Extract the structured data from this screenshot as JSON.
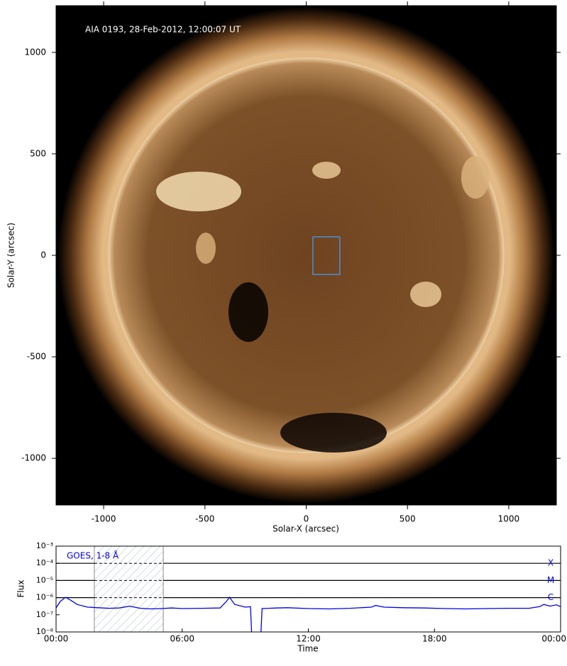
{
  "chart_data": [
    {
      "type": "image",
      "title": "AIA 0193, 28-Feb-2012, 12:00:07 UT",
      "xlabel": "Solar-X (arcsec)",
      "ylabel": "Solar-Y (arcsec)",
      "xlim": [
        -1235,
        1235
      ],
      "ylim": [
        -1230,
        1230
      ],
      "xticks": [
        -1000,
        -500,
        0,
        500,
        1000
      ],
      "yticks": [
        -1000,
        -500,
        0,
        500,
        1000
      ],
      "box": {
        "x": [
          33,
          166
        ],
        "y": [
          -94,
          91
        ],
        "color": "#4a8fd6"
      }
    },
    {
      "type": "line",
      "xlabel": "Time",
      "ylabel": "Flux",
      "log_y": true,
      "xlim": [
        0,
        24
      ],
      "ylim": [
        1e-08,
        0.001
      ],
      "xticks": [
        {
          "value": 0,
          "label": "00:00"
        },
        {
          "value": 6,
          "label": "06:00"
        },
        {
          "value": 12,
          "label": "12:00"
        },
        {
          "value": 18,
          "label": "18:00"
        },
        {
          "value": 24,
          "label": "00:00"
        }
      ],
      "yticks": [
        {
          "value": 1e-08,
          "label": "10⁻⁸"
        },
        {
          "value": 1e-07,
          "label": "10⁻⁷"
        },
        {
          "value": 1e-06,
          "label": "10⁻⁶"
        },
        {
          "value": 1e-05,
          "label": "10⁻⁵"
        },
        {
          "value": 0.0001,
          "label": "10⁻⁴"
        },
        {
          "value": 0.001,
          "label": "10⁻³"
        }
      ],
      "levels": [
        {
          "value": 0.0001,
          "label": "X"
        },
        {
          "value": 1e-05,
          "label": "M"
        },
        {
          "value": 1e-06,
          "label": "C"
        }
      ],
      "shaded": [
        1.82,
        5.1
      ],
      "x": [
        0,
        0.2,
        0.45,
        0.7,
        1.0,
        1.5,
        2.0,
        2.5,
        3.0,
        3.5,
        4.0,
        4.5,
        5.0,
        5.5,
        6.0,
        7.0,
        7.8,
        8.1,
        8.25,
        8.5,
        9.0,
        9.25,
        9.3,
        9.5,
        9.75,
        9.8,
        10.5,
        11,
        12,
        13,
        14,
        15,
        15.2,
        15.6,
        16.5,
        17.5,
        18.5,
        19.5,
        20.5,
        21.5,
        22.5,
        23.0,
        23.2,
        23.5,
        23.8,
        24
      ],
      "series": [
        {
          "name": "GOES, 1-8 Å",
          "color": "#0000ee",
          "values": [
            2.5e-07,
            6e-07,
            1.05e-06,
            7e-07,
            4e-07,
            2.8e-07,
            2.6e-07,
            2.4e-07,
            2.5e-07,
            3.2e-07,
            2.4e-07,
            2.2e-07,
            2.3e-07,
            2.5e-07,
            2.3e-07,
            2.4e-07,
            2.5e-07,
            6e-07,
            1.05e-06,
            4e-07,
            2.8e-07,
            3e-07,
            1e-08,
            null,
            1e-08,
            2.3e-07,
            2.5e-07,
            2.6e-07,
            2.3e-07,
            2.2e-07,
            2.4e-07,
            2.8e-07,
            3.5e-07,
            2.8e-07,
            2.6e-07,
            2.5e-07,
            2.3e-07,
            2.2e-07,
            2.3e-07,
            2.4e-07,
            2.4e-07,
            3e-07,
            4e-07,
            3.2e-07,
            3.8e-07,
            3e-07
          ]
        }
      ]
    }
  ]
}
